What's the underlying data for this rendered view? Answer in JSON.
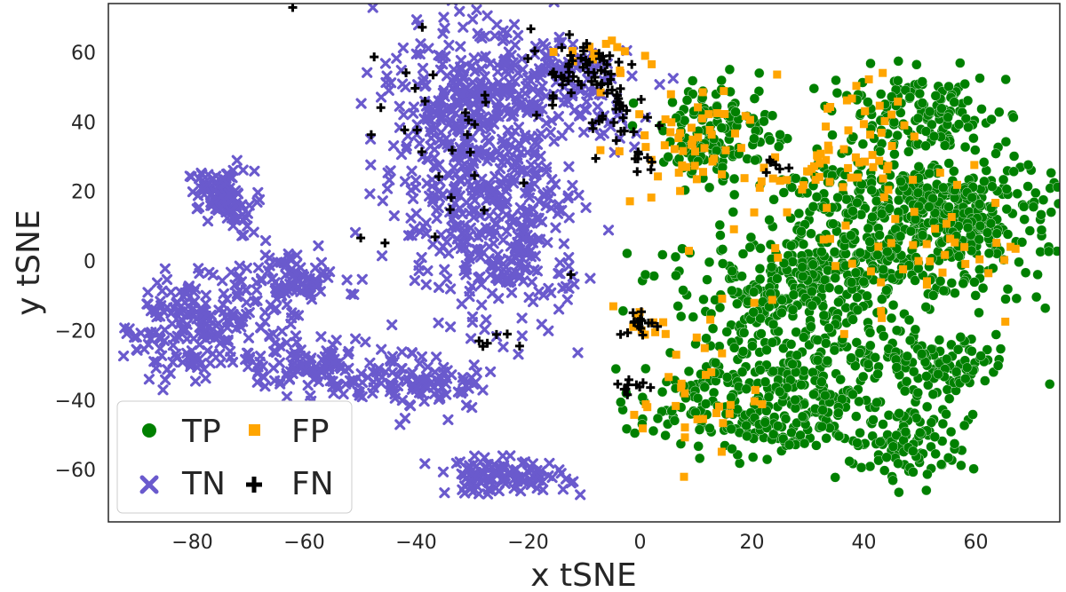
{
  "chart_data": {
    "type": "scatter",
    "title": "",
    "xlabel": "x tSNE",
    "ylabel": "y tSNE",
    "xlim": [
      -95,
      75
    ],
    "ylim": [
      -75,
      74
    ],
    "xticks": [
      -80,
      -60,
      -40,
      -20,
      0,
      20,
      40,
      60
    ],
    "yticks": [
      -60,
      -40,
      -20,
      0,
      20,
      40,
      60
    ],
    "xtick_labels": [
      "−80",
      "−60",
      "−40",
      "−20",
      "0",
      "20",
      "40",
      "60"
    ],
    "ytick_labels": [
      "−60",
      "−40",
      "−20",
      "0",
      "20",
      "40",
      "60"
    ],
    "grid": false,
    "legend_position": "bottom-left",
    "legend": [
      "TP",
      "FP",
      "TN",
      "FN"
    ],
    "series": [
      {
        "name": "TP",
        "marker": "circle",
        "color": "#008000",
        "clusters": [
          {
            "cx": 14,
            "cy": 37,
            "sx": 5,
            "sy": 7,
            "n": 140
          },
          {
            "cx": 50,
            "cy": 42,
            "sx": 8,
            "sy": 6,
            "n": 150
          },
          {
            "cx": 45,
            "cy": 18,
            "sx": 12,
            "sy": 6,
            "n": 260
          },
          {
            "cx": 62,
            "cy": 12,
            "sx": 6,
            "sy": 8,
            "n": 120
          },
          {
            "cx": 40,
            "cy": 0,
            "sx": 14,
            "sy": 6,
            "n": 260
          },
          {
            "cx": 25,
            "cy": -12,
            "sx": 10,
            "sy": 6,
            "n": 160
          },
          {
            "cx": 15,
            "cy": -40,
            "sx": 8,
            "sy": 8,
            "n": 150
          },
          {
            "cx": 35,
            "cy": -30,
            "sx": 10,
            "sy": 9,
            "n": 200
          },
          {
            "cx": 48,
            "cy": -52,
            "sx": 6,
            "sy": 6,
            "n": 110
          },
          {
            "cx": 55,
            "cy": -30,
            "sx": 6,
            "sy": 4,
            "n": 80
          },
          {
            "cx": 28,
            "cy": -48,
            "sx": 5,
            "sy": 4,
            "n": 50
          }
        ]
      },
      {
        "name": "FP",
        "marker": "square",
        "color": "#ffa500",
        "clusters": [
          {
            "cx": 7,
            "cy": 32,
            "sx": 6,
            "sy": 8,
            "n": 50
          },
          {
            "cx": 33,
            "cy": 25,
            "sx": 6,
            "sy": 4,
            "n": 35
          },
          {
            "cx": 40,
            "cy": 44,
            "sx": 6,
            "sy": 6,
            "n": 20
          },
          {
            "cx": 45,
            "cy": 5,
            "sx": 15,
            "sy": 12,
            "n": 60
          },
          {
            "cx": 10,
            "cy": -38,
            "sx": 6,
            "sy": 10,
            "n": 30
          },
          {
            "cx": -5,
            "cy": 58,
            "sx": 4,
            "sy": 4,
            "n": 15
          },
          {
            "cx": 2,
            "cy": -18,
            "sx": 2,
            "sy": 3,
            "n": 10
          }
        ]
      },
      {
        "name": "TN",
        "marker": "x",
        "color": "#6a5acd",
        "clusters": [
          {
            "cx": -75,
            "cy": 20,
            "sx": 3,
            "sy": 3,
            "n": 70
          },
          {
            "cx": -73,
            "cy": 13,
            "sx": 2,
            "sy": 3,
            "n": 30
          },
          {
            "cx": -78,
            "cy": -18,
            "sx": 7,
            "sy": 8,
            "n": 220
          },
          {
            "cx": -62,
            "cy": -5,
            "sx": 4,
            "sy": 4,
            "n": 80
          },
          {
            "cx": -60,
            "cy": -30,
            "sx": 6,
            "sy": 4,
            "n": 90
          },
          {
            "cx": -50,
            "cy": -35,
            "sx": 4,
            "sy": 3,
            "n": 40
          },
          {
            "cx": -37,
            "cy": -35,
            "sx": 5,
            "sy": 4,
            "n": 80
          },
          {
            "cx": -33,
            "cy": 30,
            "sx": 7,
            "sy": 20,
            "n": 330
          },
          {
            "cx": -22,
            "cy": 10,
            "sx": 6,
            "sy": 15,
            "n": 250
          },
          {
            "cx": -25,
            "cy": 48,
            "sx": 8,
            "sy": 8,
            "n": 160
          },
          {
            "cx": -12,
            "cy": 52,
            "sx": 5,
            "sy": 6,
            "n": 60
          },
          {
            "cx": -25,
            "cy": -62,
            "sx": 6,
            "sy": 2.5,
            "n": 110
          },
          {
            "cx": -5,
            "cy": 40,
            "sx": 3,
            "sy": 4,
            "n": 20
          }
        ]
      },
      {
        "name": "FN",
        "marker": "plus",
        "color": "#000000",
        "clusters": [
          {
            "cx": -10,
            "cy": 55,
            "sx": 5,
            "sy": 6,
            "n": 60
          },
          {
            "cx": -3,
            "cy": 40,
            "sx": 3,
            "sy": 5,
            "n": 20
          },
          {
            "cx": -35,
            "cy": 35,
            "sx": 8,
            "sy": 18,
            "n": 30
          },
          {
            "cx": 0,
            "cy": -18,
            "sx": 2,
            "sy": 2,
            "n": 15
          },
          {
            "cx": -1,
            "cy": -36,
            "sx": 2,
            "sy": 1.5,
            "n": 10
          },
          {
            "cx": 24,
            "cy": 27,
            "sx": 1.5,
            "sy": 1.5,
            "n": 6
          },
          {
            "cx": 1,
            "cy": 30,
            "sx": 1.5,
            "sy": 2,
            "n": 8
          },
          {
            "cx": -27,
            "cy": -22,
            "sx": 2,
            "sy": 3,
            "n": 6
          }
        ]
      }
    ]
  }
}
